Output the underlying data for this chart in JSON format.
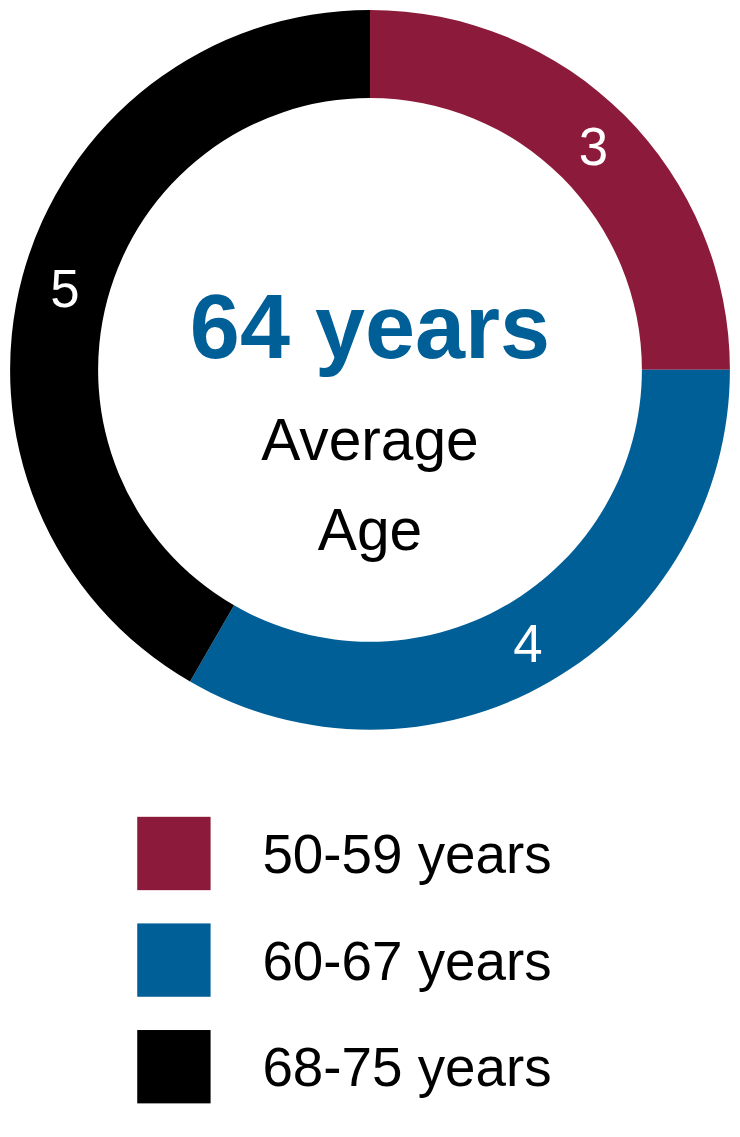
{
  "chart_data": {
    "type": "donut",
    "title": "64 years",
    "subtitle": "Average Age",
    "categories": [
      "50-59 years",
      "60-67 years",
      "68-75 years"
    ],
    "values": [
      3,
      4,
      5
    ],
    "colors": [
      "#8c1a3a",
      "#005f96",
      "#000000"
    ],
    "data_labels": true,
    "legend": "bottom"
  }
}
